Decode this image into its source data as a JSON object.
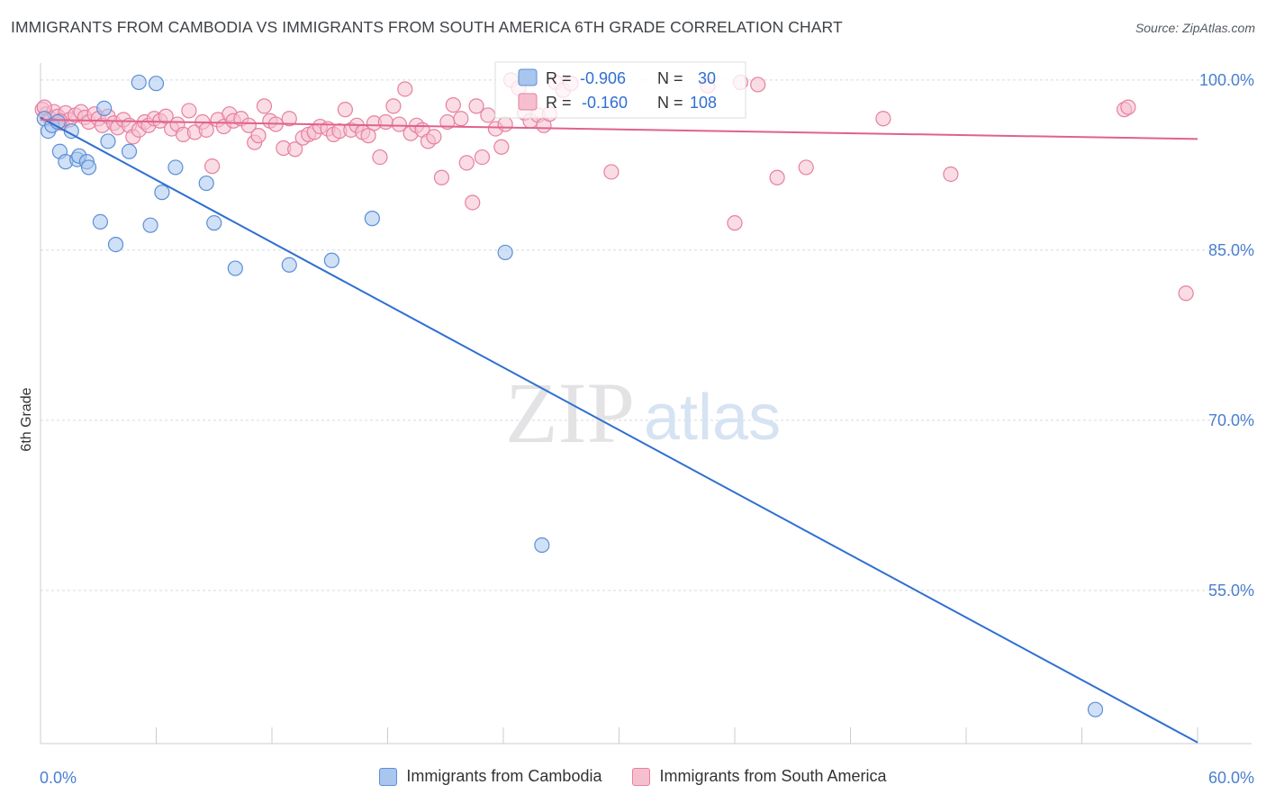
{
  "title": "IMMIGRANTS FROM CAMBODIA VS IMMIGRANTS FROM SOUTH AMERICA 6TH GRADE CORRELATION CHART",
  "source": "Source: ZipAtlas.com",
  "watermark": {
    "zip": "ZIP",
    "atlas": "atlas"
  },
  "chart_data": {
    "type": "scatter",
    "title": "IMMIGRANTS FROM CAMBODIA VS IMMIGRANTS FROM SOUTH AMERICA 6TH GRADE CORRELATION CHART",
    "xlabel": "",
    "ylabel": "6th Grade",
    "xlim": [
      0,
      60
    ],
    "ylim": [
      41.5,
      101.5
    ],
    "x_tick_labels": [
      "0.0%",
      "60.0%"
    ],
    "y_ticks": [
      100,
      85,
      70,
      55
    ],
    "y_tick_labels": [
      "100.0%",
      "85.0%",
      "70.0%",
      "55.0%"
    ],
    "grid": true,
    "legend": {
      "placement": "top-center",
      "entries": [
        {
          "r_label": "R =",
          "r_value": "-0.906",
          "n_label": "N =",
          "n_value": "30"
        },
        {
          "r_label": "R =",
          "r_value": "-0.160",
          "n_label": "N =",
          "n_value": "108"
        }
      ]
    },
    "series": [
      {
        "name": "Immigrants from Cambodia",
        "color": "#5b8fd6",
        "fill": "#a9c6ee",
        "line_color": "#2f6fd1",
        "trend": {
          "x": [
            0,
            60
          ],
          "y": [
            96.7,
            41.6
          ]
        },
        "points": [
          [
            0.2,
            96.6
          ],
          [
            0.4,
            95.5
          ],
          [
            0.6,
            96.0
          ],
          [
            0.9,
            96.3
          ],
          [
            1.0,
            93.7
          ],
          [
            1.3,
            92.8
          ],
          [
            1.6,
            95.5
          ],
          [
            1.9,
            93.0
          ],
          [
            2.0,
            93.3
          ],
          [
            2.4,
            92.8
          ],
          [
            2.5,
            92.3
          ],
          [
            3.1,
            87.5
          ],
          [
            3.3,
            97.5
          ],
          [
            3.5,
            94.6
          ],
          [
            3.9,
            85.5
          ],
          [
            4.6,
            93.7
          ],
          [
            5.1,
            99.8
          ],
          [
            5.7,
            87.2
          ],
          [
            6.0,
            99.7
          ],
          [
            6.3,
            90.1
          ],
          [
            7.0,
            92.3
          ],
          [
            8.6,
            90.9
          ],
          [
            9.0,
            87.4
          ],
          [
            10.1,
            83.4
          ],
          [
            12.9,
            83.7
          ],
          [
            15.1,
            84.1
          ],
          [
            17.2,
            87.8
          ],
          [
            24.1,
            84.8
          ],
          [
            26.0,
            59.0
          ],
          [
            54.7,
            44.5
          ]
        ]
      },
      {
        "name": "Immigrants from South America",
        "color": "#e77fa0",
        "fill": "#f6bfd0",
        "line_color": "#e0628a",
        "trend": {
          "x": [
            0,
            60
          ],
          "y": [
            96.5,
            94.8
          ]
        },
        "points": [
          [
            0.1,
            97.4
          ],
          [
            0.3,
            97.0
          ],
          [
            0.5,
            96.6
          ],
          [
            0.7,
            97.2
          ],
          [
            0.9,
            96.8
          ],
          [
            1.1,
            96.2
          ],
          [
            1.3,
            97.1
          ],
          [
            1.5,
            96.5
          ],
          [
            1.8,
            96.9
          ],
          [
            2.1,
            97.2
          ],
          [
            2.3,
            96.7
          ],
          [
            2.5,
            96.3
          ],
          [
            2.8,
            97.0
          ],
          [
            3.0,
            96.6
          ],
          [
            3.2,
            96.0
          ],
          [
            3.5,
            96.8
          ],
          [
            3.8,
            96.2
          ],
          [
            4.0,
            95.8
          ],
          [
            4.3,
            96.5
          ],
          [
            4.6,
            96.0
          ],
          [
            4.8,
            95.0
          ],
          [
            5.1,
            95.6
          ],
          [
            5.4,
            96.3
          ],
          [
            5.6,
            96.0
          ],
          [
            5.9,
            96.6
          ],
          [
            6.2,
            96.4
          ],
          [
            6.5,
            96.8
          ],
          [
            6.8,
            95.7
          ],
          [
            7.1,
            96.1
          ],
          [
            7.4,
            95.2
          ],
          [
            7.7,
            97.3
          ],
          [
            8.0,
            95.4
          ],
          [
            8.4,
            96.3
          ],
          [
            8.6,
            95.6
          ],
          [
            8.9,
            92.4
          ],
          [
            9.2,
            96.5
          ],
          [
            9.5,
            95.9
          ],
          [
            9.8,
            97.0
          ],
          [
            10.0,
            96.4
          ],
          [
            10.4,
            96.6
          ],
          [
            10.8,
            96.0
          ],
          [
            11.1,
            94.5
          ],
          [
            11.3,
            95.1
          ],
          [
            11.6,
            97.7
          ],
          [
            11.9,
            96.4
          ],
          [
            12.2,
            96.1
          ],
          [
            12.6,
            94.0
          ],
          [
            12.9,
            96.6
          ],
          [
            13.2,
            93.9
          ],
          [
            13.6,
            94.9
          ],
          [
            13.9,
            95.2
          ],
          [
            14.2,
            95.4
          ],
          [
            14.5,
            95.9
          ],
          [
            14.9,
            95.7
          ],
          [
            15.2,
            95.2
          ],
          [
            15.5,
            95.5
          ],
          [
            15.8,
            97.4
          ],
          [
            16.1,
            95.6
          ],
          [
            16.4,
            96.0
          ],
          [
            16.7,
            95.4
          ],
          [
            17.0,
            95.1
          ],
          [
            17.3,
            96.2
          ],
          [
            17.6,
            93.2
          ],
          [
            17.9,
            96.3
          ],
          [
            18.3,
            97.7
          ],
          [
            18.6,
            96.1
          ],
          [
            18.9,
            99.2
          ],
          [
            19.2,
            95.3
          ],
          [
            19.5,
            96.0
          ],
          [
            19.8,
            95.6
          ],
          [
            20.1,
            94.6
          ],
          [
            20.4,
            95.0
          ],
          [
            20.8,
            91.4
          ],
          [
            21.1,
            96.3
          ],
          [
            21.4,
            97.8
          ],
          [
            21.8,
            96.6
          ],
          [
            22.1,
            92.7
          ],
          [
            22.4,
            89.2
          ],
          [
            22.6,
            97.7
          ],
          [
            22.9,
            93.2
          ],
          [
            23.2,
            96.9
          ],
          [
            23.6,
            95.7
          ],
          [
            23.9,
            94.1
          ],
          [
            24.1,
            96.1
          ],
          [
            24.4,
            100.0
          ],
          [
            24.8,
            99.3
          ],
          [
            25.1,
            97.1
          ],
          [
            25.4,
            96.4
          ],
          [
            25.8,
            96.9
          ],
          [
            26.1,
            96.0
          ],
          [
            26.4,
            97.0
          ],
          [
            26.7,
            99.8
          ],
          [
            27.1,
            99.1
          ],
          [
            27.5,
            99.7
          ],
          [
            29.6,
            91.9
          ],
          [
            34.6,
            99.5
          ],
          [
            36.0,
            87.4
          ],
          [
            36.3,
            99.8
          ],
          [
            37.2,
            99.6
          ],
          [
            38.2,
            91.4
          ],
          [
            39.7,
            92.3
          ],
          [
            43.7,
            96.6
          ],
          [
            47.2,
            91.7
          ],
          [
            56.2,
            97.4
          ],
          [
            56.4,
            97.6
          ],
          [
            59.4,
            81.2
          ],
          [
            0.2,
            97.6
          ],
          [
            1.0,
            96.4
          ]
        ]
      }
    ]
  }
}
